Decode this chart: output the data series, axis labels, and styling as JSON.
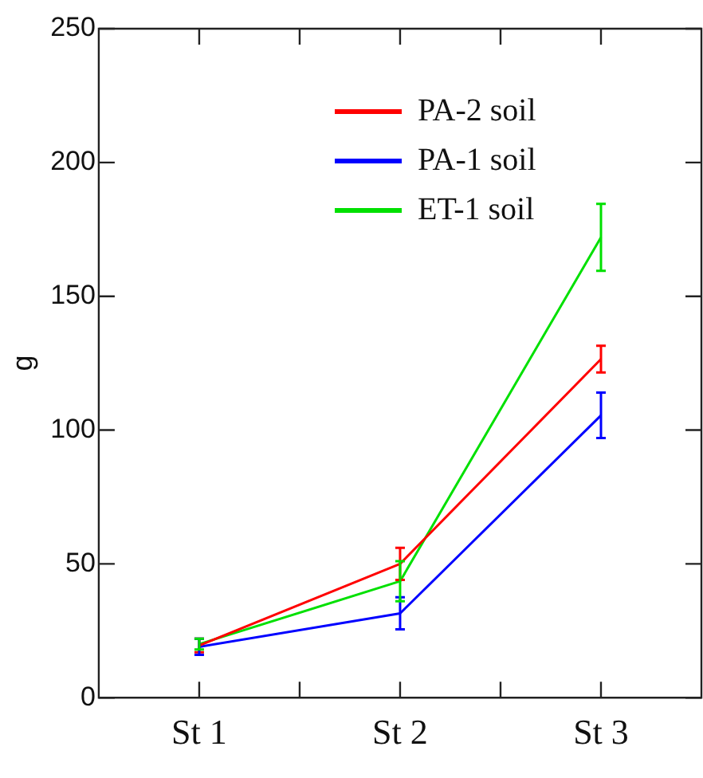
{
  "chart_data": {
    "type": "line",
    "ylabel": "g",
    "categories": [
      "St 1",
      "St 2",
      "St 3"
    ],
    "series": [
      {
        "name": "PA-2 soil",
        "color": "#ff0000",
        "values": [
          19.5,
          50,
          126.5
        ],
        "errors": [
          2.5,
          6,
          5
        ]
      },
      {
        "name": "PA-1 soil",
        "color": "#0000ff",
        "values": [
          19,
          31.5,
          105.5
        ],
        "errors": [
          3,
          6,
          8.5
        ]
      },
      {
        "name": "ET-1 soil",
        "color": "#00e000",
        "values": [
          20,
          43.5,
          172
        ],
        "errors": [
          2,
          7.5,
          12.5
        ]
      }
    ],
    "ylim": [
      0,
      250
    ],
    "yticks": [
      0,
      50,
      100,
      150,
      200,
      250
    ],
    "grid": false,
    "legend": "top right",
    "marker": "none",
    "line_style": "solid"
  }
}
